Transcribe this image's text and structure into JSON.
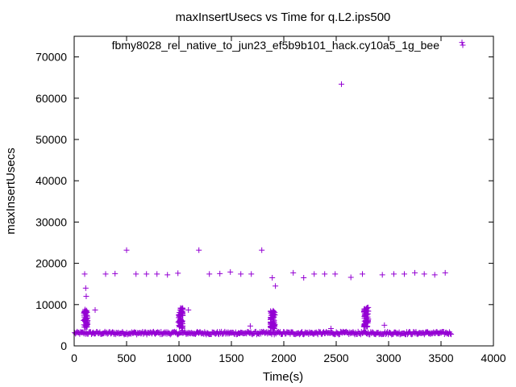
{
  "chart_data": {
    "type": "scatter",
    "title": "maxInsertUsecs vs Time for q.L2.ips500",
    "xlabel": "Time(s)",
    "ylabel": "maxInsertUsecs",
    "xlim": [
      0,
      4000
    ],
    "ylim": [
      0,
      75000
    ],
    "x_ticks": [
      0,
      500,
      1000,
      1500,
      2000,
      2500,
      3000,
      3500,
      4000
    ],
    "y_ticks": [
      0,
      10000,
      20000,
      30000,
      40000,
      50000,
      60000,
      70000
    ],
    "grid": false,
    "legend_position": "top-right",
    "marker": "plus",
    "series": [
      {
        "name": "fbmy8028_rel_native_to_jun23_ef5b9b101_hack.cy10a5_1g_bee",
        "color": "#9400d3",
        "points": [
          [
            100,
            17400
          ],
          [
            110,
            14000
          ],
          [
            115,
            12000
          ],
          [
            200,
            8700
          ],
          [
            300,
            17400
          ],
          [
            390,
            17500
          ],
          [
            500,
            23200
          ],
          [
            590,
            17400
          ],
          [
            690,
            17400
          ],
          [
            790,
            17400
          ],
          [
            890,
            17200
          ],
          [
            990,
            17600
          ],
          [
            1090,
            8700
          ],
          [
            1190,
            23200
          ],
          [
            1290,
            17400
          ],
          [
            1390,
            17500
          ],
          [
            1490,
            17900
          ],
          [
            1590,
            17400
          ],
          [
            1690,
            17400
          ],
          [
            1680,
            4800
          ],
          [
            1790,
            23200
          ],
          [
            1890,
            16500
          ],
          [
            1920,
            14500
          ],
          [
            2090,
            17700
          ],
          [
            2190,
            16500
          ],
          [
            2290,
            17400
          ],
          [
            2390,
            17400
          ],
          [
            2450,
            4200
          ],
          [
            2490,
            17400
          ],
          [
            2550,
            63400
          ],
          [
            2640,
            16600
          ],
          [
            2750,
            17400
          ],
          [
            2940,
            17200
          ],
          [
            2960,
            5000
          ],
          [
            3050,
            17400
          ],
          [
            3150,
            17400
          ],
          [
            3250,
            17700
          ],
          [
            3340,
            17400
          ],
          [
            3440,
            17200
          ],
          [
            3540,
            17700
          ],
          [
            3700,
            73500
          ]
        ],
        "baseline": {
          "x_start": 5,
          "x_end": 3600,
          "step": 8,
          "y_center": 3100,
          "y_spread": 350
        },
        "clusters": [
          {
            "x_center": 110,
            "x_spread": 20,
            "y_min": 4500,
            "y_max": 8900,
            "count": 50
          },
          {
            "x_center": 1015,
            "x_spread": 22,
            "y_min": 4200,
            "y_max": 9200,
            "count": 60
          },
          {
            "x_center": 1895,
            "x_spread": 22,
            "y_min": 4200,
            "y_max": 8800,
            "count": 60
          },
          {
            "x_center": 2785,
            "x_spread": 22,
            "y_min": 4500,
            "y_max": 9500,
            "count": 60
          }
        ]
      }
    ]
  }
}
